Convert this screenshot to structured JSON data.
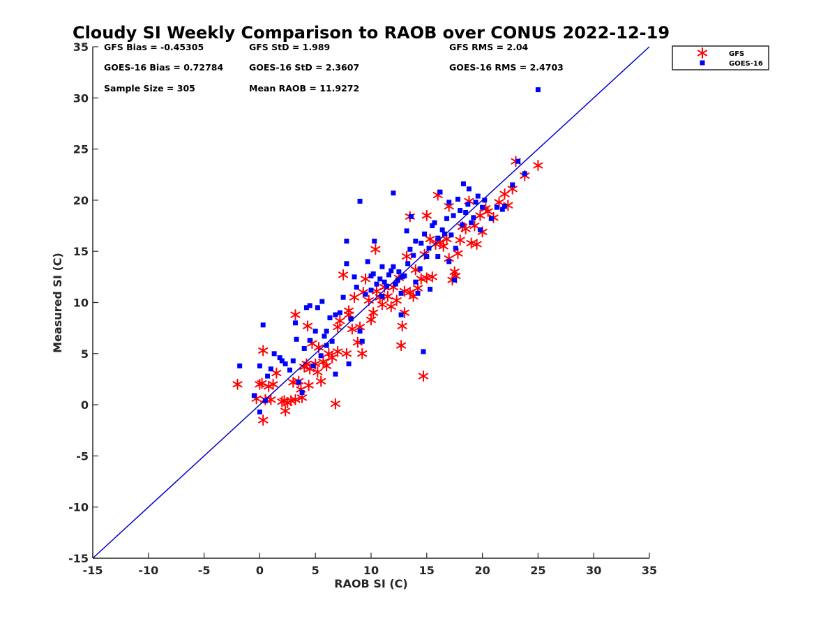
{
  "chart_data": {
    "type": "scatter",
    "title": "Cloudy SI Weekly Comparison to RAOB over CONUS 2022-12-19",
    "xlabel": "RAOB SI (C)",
    "ylabel": "Measured SI (C)",
    "xlim": [
      -15,
      35
    ],
    "ylim": [
      -15,
      35
    ],
    "xticks": [
      -15,
      -10,
      -5,
      0,
      5,
      10,
      15,
      20,
      25,
      30,
      35
    ],
    "yticks": [
      -15,
      -10,
      -5,
      0,
      5,
      10,
      15,
      20,
      25,
      30,
      35
    ],
    "grid": false,
    "legend_position": "top-right outside",
    "reference_line": {
      "x": [
        -15,
        35
      ],
      "y": [
        -15,
        35
      ],
      "color": "#0000cc"
    },
    "stats": [
      {
        "text": "GFS Bias = -0.45305"
      },
      {
        "text": "GFS StD = 1.989"
      },
      {
        "text": "GFS RMS = 2.04"
      },
      {
        "text": "GOES-16 Bias = 0.72784"
      },
      {
        "text": "GOES-16 StD = 2.3607"
      },
      {
        "text": "GOES-16 RMS = 2.4703"
      },
      {
        "text": "Sample Size = 305"
      },
      {
        "text": "Mean RAOB = 11.9272"
      }
    ],
    "series": [
      {
        "name": "GFS",
        "marker": "asterisk",
        "color": "#ff0000",
        "points": [
          [
            -2,
            2
          ],
          [
            -0.3,
            0.6
          ],
          [
            0,
            2
          ],
          [
            0.2,
            2.1
          ],
          [
            0.3,
            -1.5
          ],
          [
            0.3,
            5.3
          ],
          [
            0.5,
            0.5
          ],
          [
            0.8,
            1.8
          ],
          [
            1,
            0.5
          ],
          [
            1.2,
            2
          ],
          [
            1.5,
            3.1
          ],
          [
            2,
            0.3
          ],
          [
            2.2,
            0.4
          ],
          [
            2.3,
            -0.6
          ],
          [
            2.5,
            0.2
          ],
          [
            2.8,
            0.4
          ],
          [
            3,
            2.2
          ],
          [
            3.2,
            0.5
          ],
          [
            3.2,
            8.8
          ],
          [
            3.5,
            2.3
          ],
          [
            3.7,
            1.5
          ],
          [
            3.8,
            0.7
          ],
          [
            4,
            3.7
          ],
          [
            4.2,
            4
          ],
          [
            4.3,
            7.7
          ],
          [
            4.4,
            1.9
          ],
          [
            4.5,
            3.5
          ],
          [
            4.7,
            6
          ],
          [
            5,
            4
          ],
          [
            5.2,
            3.2
          ],
          [
            5.3,
            5.6
          ],
          [
            5.5,
            2.3
          ],
          [
            5.7,
            4.2
          ],
          [
            6,
            3.8
          ],
          [
            6.2,
            5
          ],
          [
            6.5,
            4.6
          ],
          [
            6.8,
            0.1
          ],
          [
            7,
            5.2
          ],
          [
            7,
            7.6
          ],
          [
            7.2,
            8.2
          ],
          [
            7.5,
            12.7
          ],
          [
            7.8,
            5
          ],
          [
            8,
            8.8
          ],
          [
            8,
            9.2
          ],
          [
            8.3,
            7.4
          ],
          [
            8.5,
            10.5
          ],
          [
            8.8,
            6.1
          ],
          [
            9,
            7.6
          ],
          [
            9.2,
            5
          ],
          [
            9.3,
            11
          ],
          [
            9.5,
            12.3
          ],
          [
            9.8,
            10.2
          ],
          [
            10,
            8.3
          ],
          [
            10.2,
            9
          ],
          [
            10.4,
            15.2
          ],
          [
            10.5,
            11.1
          ],
          [
            10.8,
            10.5
          ],
          [
            11,
            9.8
          ],
          [
            11.2,
            11.5
          ],
          [
            11.5,
            10.6
          ],
          [
            11.8,
            9.6
          ],
          [
            12,
            11.5
          ],
          [
            12.3,
            10.2
          ],
          [
            12.5,
            12.4
          ],
          [
            12.7,
            5.8
          ],
          [
            12.8,
            7.7
          ],
          [
            13,
            9
          ],
          [
            13,
            11.1
          ],
          [
            13.2,
            14.5
          ],
          [
            13.5,
            11
          ],
          [
            13.5,
            18.4
          ],
          [
            13.8,
            10.6
          ],
          [
            14,
            13.2
          ],
          [
            14.2,
            11.4
          ],
          [
            14.5,
            12.3
          ],
          [
            14.7,
            2.8
          ],
          [
            14.8,
            14.7
          ],
          [
            15,
            12.4
          ],
          [
            15,
            18.5
          ],
          [
            15.3,
            16.2
          ],
          [
            15.5,
            12.5
          ],
          [
            15.8,
            15.7
          ],
          [
            16,
            20.5
          ],
          [
            16.2,
            15.9
          ],
          [
            16.5,
            15.5
          ],
          [
            16.8,
            16.2
          ],
          [
            17,
            14.3
          ],
          [
            17,
            19.4
          ],
          [
            17.3,
            12.2
          ],
          [
            17.5,
            13
          ],
          [
            17.6,
            12.6
          ],
          [
            17.8,
            14.8
          ],
          [
            18,
            16.1
          ],
          [
            18.2,
            17.4
          ],
          [
            18.5,
            17.2
          ],
          [
            18.8,
            19.9
          ],
          [
            19,
            15.8
          ],
          [
            19.3,
            17.5
          ],
          [
            19.5,
            15.7
          ],
          [
            19.8,
            18.5
          ],
          [
            20,
            16.9
          ],
          [
            20.3,
            19.2
          ],
          [
            20.5,
            18.9
          ],
          [
            21,
            18.3
          ],
          [
            21.5,
            19.8
          ],
          [
            22,
            20.6
          ],
          [
            22.3,
            19.5
          ],
          [
            22.7,
            21.1
          ],
          [
            23,
            23.8
          ],
          [
            23.8,
            22.4
          ],
          [
            25,
            23.4
          ]
        ]
      },
      {
        "name": "GOES-16",
        "marker": "square",
        "color": "#0000ff",
        "points": [
          [
            -1.8,
            3.8
          ],
          [
            -0.5,
            0.9
          ],
          [
            0,
            -0.7
          ],
          [
            0,
            3.8
          ],
          [
            0.3,
            7.8
          ],
          [
            0.5,
            0.4
          ],
          [
            0.7,
            2.8
          ],
          [
            1,
            3.5
          ],
          [
            1.3,
            5
          ],
          [
            1.8,
            4.6
          ],
          [
            2,
            4.3
          ],
          [
            2.3,
            4
          ],
          [
            2.7,
            3.4
          ],
          [
            3,
            4.3
          ],
          [
            3.2,
            8
          ],
          [
            3.3,
            6.4
          ],
          [
            3.5,
            2.2
          ],
          [
            3.8,
            1.2
          ],
          [
            4,
            5.5
          ],
          [
            4.2,
            9.5
          ],
          [
            4.5,
            9.7
          ],
          [
            4.5,
            6.3
          ],
          [
            4.8,
            3.8
          ],
          [
            5,
            7.2
          ],
          [
            5.2,
            9.5
          ],
          [
            5.5,
            4.8
          ],
          [
            5.6,
            10.1
          ],
          [
            5.8,
            6.7
          ],
          [
            6,
            7.2
          ],
          [
            6,
            5.8
          ],
          [
            6.3,
            8.5
          ],
          [
            6.5,
            6.2
          ],
          [
            6.8,
            8.8
          ],
          [
            6.8,
            3
          ],
          [
            7.2,
            9
          ],
          [
            7.5,
            10.5
          ],
          [
            7.8,
            13.8
          ],
          [
            7.8,
            16
          ],
          [
            8,
            4
          ],
          [
            8.2,
            8.4
          ],
          [
            8.5,
            12.5
          ],
          [
            8.7,
            11.5
          ],
          [
            9,
            19.9
          ],
          [
            9,
            7.2
          ],
          [
            9.2,
            6.2
          ],
          [
            9.5,
            10.8
          ],
          [
            9.7,
            14
          ],
          [
            10,
            12.6
          ],
          [
            10,
            11.2
          ],
          [
            10.2,
            12.8
          ],
          [
            10.3,
            16
          ],
          [
            10.5,
            11.8
          ],
          [
            10.8,
            12.3
          ],
          [
            11,
            13.5
          ],
          [
            11,
            10.6
          ],
          [
            11.2,
            12
          ],
          [
            11.4,
            11.6
          ],
          [
            11.6,
            12.7
          ],
          [
            11.8,
            13.1
          ],
          [
            12,
            20.7
          ],
          [
            12,
            13.5
          ],
          [
            12.2,
            11.8
          ],
          [
            12.4,
            12.2
          ],
          [
            12.5,
            13
          ],
          [
            12.7,
            10.9
          ],
          [
            12.7,
            8.8
          ],
          [
            12.8,
            12.5
          ],
          [
            13,
            12.6
          ],
          [
            13.2,
            17
          ],
          [
            13.3,
            13.8
          ],
          [
            13.5,
            15.2
          ],
          [
            13.6,
            18.4
          ],
          [
            13.8,
            14.6
          ],
          [
            14,
            16
          ],
          [
            14,
            12
          ],
          [
            14.2,
            10.9
          ],
          [
            14.4,
            13.3
          ],
          [
            14.5,
            15.8
          ],
          [
            14.7,
            5.2
          ],
          [
            14.8,
            16.7
          ],
          [
            15,
            14.5
          ],
          [
            15.2,
            15.3
          ],
          [
            15.3,
            11.3
          ],
          [
            15.5,
            17.5
          ],
          [
            15.7,
            17.8
          ],
          [
            16,
            14.5
          ],
          [
            16,
            16.3
          ],
          [
            16.2,
            20.8
          ],
          [
            16.4,
            17.1
          ],
          [
            16.6,
            16.7
          ],
          [
            16.8,
            18.2
          ],
          [
            17,
            19.8
          ],
          [
            17,
            14
          ],
          [
            17.2,
            16.6
          ],
          [
            17.4,
            18.5
          ],
          [
            17.5,
            12.2
          ],
          [
            17.6,
            15.3
          ],
          [
            17.8,
            20.1
          ],
          [
            18,
            19
          ],
          [
            18.2,
            17.6
          ],
          [
            18.3,
            21.6
          ],
          [
            18.5,
            18.8
          ],
          [
            18.7,
            19.6
          ],
          [
            18.8,
            21.1
          ],
          [
            19,
            17.8
          ],
          [
            19.2,
            18.3
          ],
          [
            19.4,
            19.8
          ],
          [
            19.6,
            20.4
          ],
          [
            19.8,
            17.1
          ],
          [
            20,
            19.3
          ],
          [
            20.2,
            20
          ],
          [
            20.8,
            18.2
          ],
          [
            21.3,
            19.3
          ],
          [
            21.8,
            19.1
          ],
          [
            22,
            19.4
          ],
          [
            22.7,
            21.5
          ],
          [
            23.2,
            23.8
          ],
          [
            23.8,
            22.6
          ],
          [
            25,
            30.8
          ]
        ]
      }
    ]
  }
}
